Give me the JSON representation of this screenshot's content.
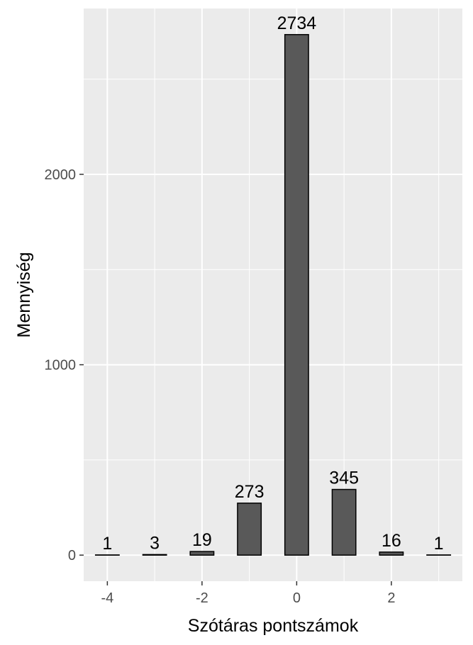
{
  "chart_data": {
    "type": "bar",
    "title": "",
    "xlabel": "Szótáras pontszámok",
    "ylabel": "Mennyiség",
    "x": [
      -4,
      -3,
      -2,
      -1,
      0,
      1,
      2,
      3
    ],
    "values": [
      1,
      3,
      19,
      273,
      2734,
      345,
      16,
      1
    ],
    "data_labels": [
      "1",
      "3",
      "19",
      "273",
      "2734",
      "345",
      "16",
      "1"
    ],
    "xlim": [
      -4.5,
      3.5
    ],
    "ylim": [
      -137,
      2871
    ],
    "x_ticks": [
      -4,
      -2,
      0,
      2
    ],
    "x_tick_labels": [
      "-4",
      "-2",
      "0",
      "2"
    ],
    "y_ticks": [
      0,
      1000,
      2000
    ],
    "y_tick_labels": [
      "0",
      "1000",
      "2000"
    ],
    "bar_width": 0.5,
    "grid": true,
    "legend": "none",
    "colors": {
      "panel": "#ebebeb",
      "grid": "#ffffff",
      "bar_fill": "#595959",
      "bar_stroke": "#000000",
      "tick_text": "#4d4d4d",
      "text": "#000000"
    }
  }
}
